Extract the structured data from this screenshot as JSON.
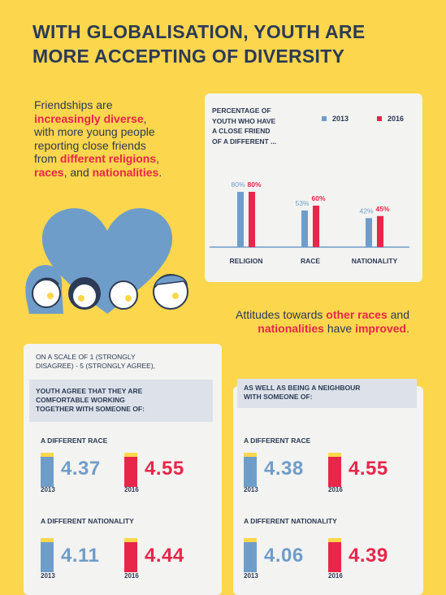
{
  "title_line1": "WITH GLOBALISATION, YOUTH ARE",
  "title_line2": "MORE ACCEPTING OF DIVERSITY",
  "intro": {
    "p1": "Friendships are",
    "p2": "increasingly diverse",
    "p3": ",",
    "p4": "with more young people",
    "p5": "reporting close friends",
    "p6": "from ",
    "p7": "different religions",
    "p8": ",",
    "p9": "races",
    "p10": ", and ",
    "p11": "nationalities",
    "p12": "."
  },
  "chart_data": {
    "type": "bar",
    "title_lines": [
      "PERCENTAGE OF",
      "YOUTH WHO HAVE",
      "A CLOSE FRIEND",
      "OF A DIFFERENT ..."
    ],
    "categories": [
      "RELIGION",
      "RACE",
      "NATIONALITY"
    ],
    "series": [
      {
        "name": "2013",
        "values": [
          80,
          53,
          42
        ],
        "labels": [
          "80%",
          "53%",
          "42%"
        ],
        "color": "#6f9dc9"
      },
      {
        "name": "2016",
        "values": [
          80,
          60,
          45
        ],
        "labels": [
          "80%",
          "60%",
          "45%"
        ],
        "color": "#e8264a"
      }
    ],
    "ylim": [
      0,
      100
    ],
    "grid": false,
    "legend": "top-right"
  },
  "attitudes": {
    "a1": "Attitudes towards ",
    "a2": "other races",
    "a3": " and",
    "a4": "nationalities",
    "a5": " have ",
    "a6": "improved",
    "a7": "."
  },
  "scale_note": {
    "l1": "ON A SCALE OF 1 (STRONGLY",
    "l2": "DISAGREE) - 5 (STRONGLY AGREE),"
  },
  "working": {
    "heading_l1": "YOUTH AGREE THAT THEY ARE",
    "heading_l2": "COMFORTABLE WORKING",
    "heading_l3": "TOGETHER WITH SOMEONE OF:",
    "race_label": "A DIFFERENT RACE",
    "race_2013": "4.37",
    "race_2016": "4.55",
    "nat_label": "A DIFFERENT NATIONALITY",
    "nat_2013": "4.11",
    "nat_2016": "4.44",
    "year_a": "2013",
    "year_b": "2016"
  },
  "neighbour": {
    "heading_l1": "AS WELL AS BEING A NEIGHBOUR",
    "heading_l2": "WITH SOMEONE OF:",
    "race_label": "A DIFFERENT RACE",
    "race_2013": "4.38",
    "race_2016": "4.55",
    "nat_label": "A DIFFERENT NATIONALITY",
    "nat_2013": "4.06",
    "nat_2016": "4.39",
    "year_a": "2013",
    "year_b": "2016"
  },
  "colors": {
    "background": "#fcd64d",
    "navy": "#2d3a55",
    "blue_2013": "#6f9dc9",
    "red_2016": "#e8264a",
    "card": "#f3f3f1"
  }
}
